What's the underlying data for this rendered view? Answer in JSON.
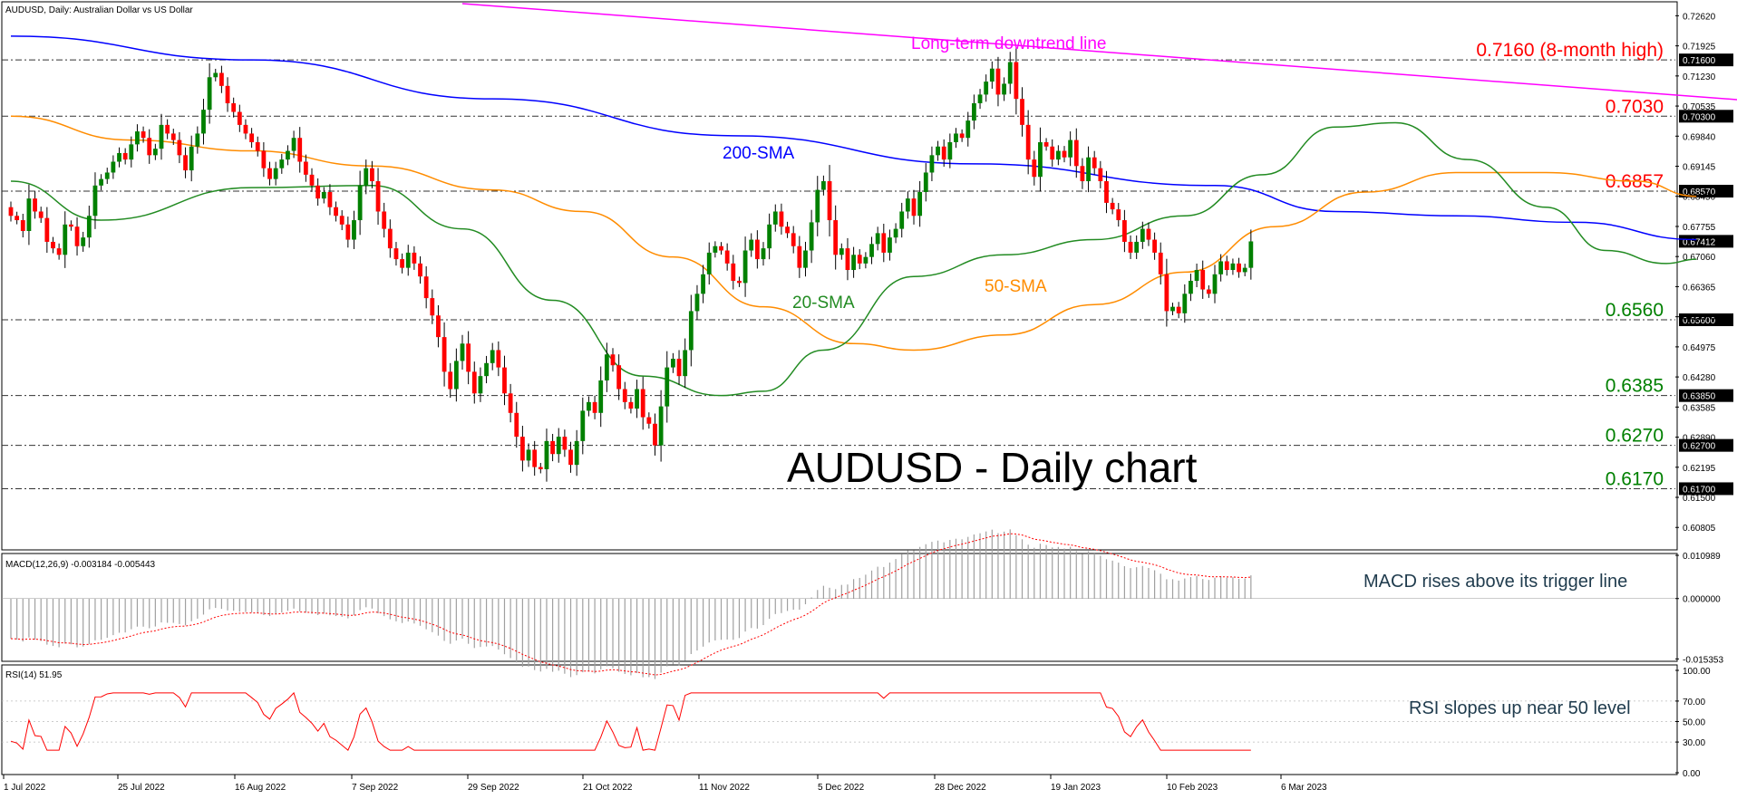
{
  "header": {
    "symbol_info": "AUDUSD, Daily:  Australian Dollar vs US Dollar"
  },
  "price_panel": {
    "y_ticks": [
      "0.72620",
      "0.71925",
      "0.71230",
      "0.70535",
      "0.69840",
      "0.69145",
      "0.68450",
      "0.67755",
      "0.67060",
      "0.66365",
      "0.65670",
      "0.64975",
      "0.64280",
      "0.63585",
      "0.62890",
      "0.62195",
      "0.61500",
      "0.60805"
    ],
    "levels": [
      {
        "value": 0.716,
        "label": "0.7160 (8-month high)",
        "axis_label": "0.71600",
        "color": "#ff0000"
      },
      {
        "value": 0.703,
        "label": "0.7030",
        "axis_label": "0.70300",
        "color": "#ff0000"
      },
      {
        "value": 0.6857,
        "label": "0.6857",
        "axis_label": "0.68570",
        "color": "#ff0000"
      },
      {
        "value": 0.656,
        "label": "0.6560",
        "axis_label": "0.65600",
        "color": "#008000"
      },
      {
        "value": 0.6385,
        "label": "0.6385",
        "axis_label": "0.63850",
        "color": "#008000"
      },
      {
        "value": 0.627,
        "label": "0.6270",
        "axis_label": "0.62700",
        "color": "#008000"
      },
      {
        "value": 0.617,
        "label": "0.6170",
        "axis_label": "0.61700",
        "color": "#008000"
      }
    ],
    "current_price": "0.67412",
    "chart_title": "AUDUSD - Daily chart",
    "annotations": {
      "downtrend": "Long-term downtrend line",
      "sma200": "200-SMA",
      "sma20": "20-SMA",
      "sma50": "50-SMA"
    },
    "colors": {
      "bull": "#008000",
      "bear": "#ff0000",
      "sma20": "#228b22",
      "sma50": "#ff8c00",
      "sma200": "#0000ff",
      "downtrend": "#ff00ff"
    }
  },
  "macd_panel": {
    "header": "MACD(12,26,9) -0.003184 -0.005443",
    "y_ticks": [
      "0.010989",
      "0.000000",
      "-0.015353"
    ],
    "annotation": "MACD rises above its trigger line"
  },
  "rsi_panel": {
    "header": "RSI(14) 51.95",
    "y_ticks": [
      "100.00",
      "70.00",
      "50.00",
      "30.00",
      "0.00"
    ],
    "annotation": "RSI slopes up near 50 level"
  },
  "x_axis": {
    "labels": [
      "1 Jul 2022",
      "25 Jul 2022",
      "16 Aug 2022",
      "7 Sep 2022",
      "29 Sep 2022",
      "21 Oct 2022",
      "11 Nov 2022",
      "5 Dec 2022",
      "28 Dec 2022",
      "19 Jan 2023",
      "10 Feb 2023",
      "6 Mar 2023"
    ]
  },
  "chart_data": {
    "type": "candlestick",
    "title": "AUDUSD - Daily chart",
    "x_labels": [
      "1 Jul 2022",
      "25 Jul 2022",
      "16 Aug 2022",
      "7 Sep 2022",
      "29 Sep 2022",
      "21 Oct 2022",
      "11 Nov 2022",
      "5 Dec 2022",
      "28 Dec 2022",
      "19 Jan 2023",
      "10 Feb 2023",
      "6 Mar 2023"
    ],
    "price_ylim": [
      0.6035,
      0.729
    ],
    "close": [
      0.68,
      0.679,
      0.6765,
      0.684,
      0.681,
      0.6795,
      0.674,
      0.6725,
      0.671,
      0.678,
      0.6775,
      0.673,
      0.675,
      0.68,
      0.687,
      0.6885,
      0.69,
      0.6925,
      0.6945,
      0.693,
      0.6965,
      0.6995,
      0.698,
      0.694,
      0.6955,
      0.701,
      0.699,
      0.6975,
      0.694,
      0.6905,
      0.696,
      0.699,
      0.7045,
      0.712,
      0.713,
      0.71,
      0.706,
      0.704,
      0.701,
      0.699,
      0.697,
      0.695,
      0.691,
      0.6885,
      0.691,
      0.693,
      0.695,
      0.698,
      0.6925,
      0.6895,
      0.687,
      0.684,
      0.6855,
      0.682,
      0.68,
      0.678,
      0.6745,
      0.679,
      0.687,
      0.691,
      0.688,
      0.681,
      0.677,
      0.6725,
      0.67,
      0.668,
      0.6715,
      0.669,
      0.666,
      0.661,
      0.657,
      0.652,
      0.644,
      0.64,
      0.6465,
      0.6505,
      0.644,
      0.639,
      0.643,
      0.646,
      0.649,
      0.645,
      0.639,
      0.6345,
      0.629,
      0.6235,
      0.626,
      0.622,
      0.6215,
      0.628,
      0.625,
      0.629,
      0.626,
      0.6225,
      0.628,
      0.635,
      0.637,
      0.6345,
      0.642,
      0.648,
      0.6455,
      0.64,
      0.637,
      0.6355,
      0.64,
      0.6335,
      0.632,
      0.627,
      0.636,
      0.645,
      0.647,
      0.643,
      0.649,
      0.658,
      0.662,
      0.6665,
      0.6715,
      0.673,
      0.672,
      0.669,
      0.665,
      0.6645,
      0.672,
      0.6745,
      0.67,
      0.6725,
      0.678,
      0.681,
      0.6775,
      0.676,
      0.673,
      0.668,
      0.672,
      0.6785,
      0.686,
      0.688,
      0.679,
      0.671,
      0.6725,
      0.6675,
      0.671,
      0.669,
      0.6705,
      0.6735,
      0.676,
      0.6715,
      0.675,
      0.677,
      0.681,
      0.684,
      0.68,
      0.6855,
      0.69,
      0.694,
      0.696,
      0.693,
      0.697,
      0.699,
      0.698,
      0.702,
      0.706,
      0.708,
      0.711,
      0.714,
      0.708,
      0.7105,
      0.7155,
      0.707,
      0.701,
      0.693,
      0.689,
      0.697,
      0.696,
      0.693,
      0.695,
      0.6935,
      0.6975,
      0.6915,
      0.688,
      0.6935,
      0.691,
      0.688,
      0.683,
      0.6815,
      0.679,
      0.674,
      0.6715,
      0.674,
      0.677,
      0.6745,
      0.6715,
      0.6665,
      0.658,
      0.659,
      0.6575,
      0.662,
      0.665,
      0.6675,
      0.663,
      0.662,
      0.6665,
      0.6695,
      0.6675,
      0.669,
      0.667,
      0.668,
      0.6741
    ],
    "sma20": [
      [
        0,
        0.688
      ],
      [
        15,
        0.679
      ],
      [
        40,
        0.6865
      ],
      [
        60,
        0.687
      ],
      [
        75,
        0.677
      ],
      [
        90,
        0.6605
      ],
      [
        105,
        0.643
      ],
      [
        118,
        0.6385
      ],
      [
        125,
        0.6395
      ],
      [
        135,
        0.649
      ],
      [
        150,
        0.666
      ],
      [
        165,
        0.671
      ],
      [
        180,
        0.6745
      ],
      [
        195,
        0.68
      ],
      [
        208,
        0.6895
      ],
      [
        220,
        0.7005
      ],
      [
        230,
        0.7015
      ],
      [
        242,
        0.693
      ],
      [
        255,
        0.682
      ],
      [
        265,
        0.672
      ],
      [
        275,
        0.669
      ],
      [
        280,
        0.67
      ]
    ],
    "sma50": [
      [
        0,
        0.703
      ],
      [
        20,
        0.6975
      ],
      [
        40,
        0.695
      ],
      [
        60,
        0.6915
      ],
      [
        80,
        0.686
      ],
      [
        95,
        0.681
      ],
      [
        110,
        0.6705
      ],
      [
        125,
        0.659
      ],
      [
        140,
        0.6505
      ],
      [
        150,
        0.649
      ],
      [
        165,
        0.6525
      ],
      [
        180,
        0.6595
      ],
      [
        195,
        0.667
      ],
      [
        210,
        0.6775
      ],
      [
        225,
        0.6855
      ],
      [
        240,
        0.69
      ],
      [
        255,
        0.69
      ],
      [
        270,
        0.688
      ],
      [
        280,
        0.6845
      ]
    ],
    "sma200": [
      [
        0,
        0.7215
      ],
      [
        40,
        0.716
      ],
      [
        80,
        0.707
      ],
      [
        120,
        0.6985
      ],
      [
        160,
        0.692
      ],
      [
        200,
        0.687
      ],
      [
        220,
        0.681
      ],
      [
        240,
        0.68
      ],
      [
        260,
        0.6785
      ],
      [
        280,
        0.6745
      ]
    ],
    "downtrend_line": [
      [
        75,
        0.729
      ],
      [
        309,
        0.7045
      ]
    ],
    "macd_histogram_ylim": [
      -0.0155,
      0.011
    ],
    "rsi_ylim": [
      0,
      100
    ],
    "support_resistance": [
      0.716,
      0.703,
      0.6857,
      0.656,
      0.6385,
      0.627,
      0.617
    ],
    "last_close": 0.67412
  }
}
